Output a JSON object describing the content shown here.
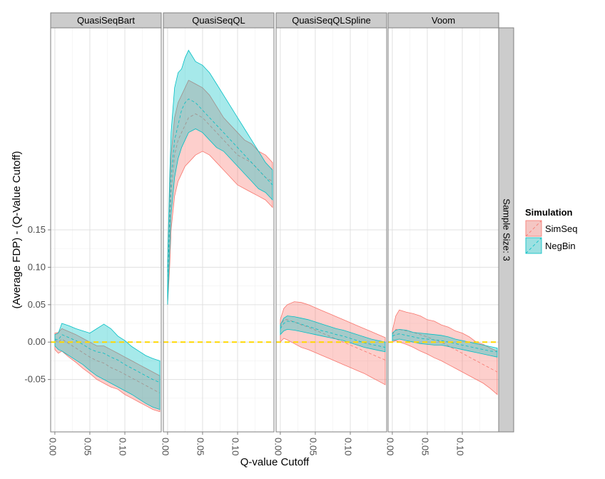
{
  "chart_data": {
    "type": "area",
    "xlabel": "Q-value Cutoff",
    "ylabel": "(Average FDP) - (Q-Value Cutoff)",
    "strip_right": "Sample Size: 3",
    "x_ticks": [
      "0.00",
      "0.05",
      "0.10"
    ],
    "y_ticks": [
      "-0.05",
      "0.00",
      "0.05",
      "0.10",
      "0.15"
    ],
    "xlim": [
      -0.006,
      0.152
    ],
    "ylim": [
      -0.12,
      0.42
    ],
    "reference_line": {
      "y": 0.0,
      "color": "#FFD700"
    },
    "legend": {
      "title": "Simulation",
      "position": "right",
      "entries": [
        {
          "name": "SimSeq",
          "fill": "#F8766D",
          "line": "#F8766D"
        },
        {
          "name": "NegBin",
          "fill": "#00BFC4",
          "line": "#00BFC4"
        }
      ]
    },
    "panels": [
      {
        "name": "QuasiSeqBart",
        "series": [
          {
            "name": "SimSeq",
            "x": [
              0.0,
              0.005,
              0.01,
              0.02,
              0.03,
              0.04,
              0.05,
              0.06,
              0.07,
              0.08,
              0.09,
              0.1,
              0.11,
              0.12,
              0.13,
              0.14,
              0.15
            ],
            "lower": [
              -0.01,
              -0.015,
              -0.012,
              -0.02,
              -0.027,
              -0.035,
              -0.042,
              -0.05,
              -0.055,
              -0.06,
              -0.063,
              -0.07,
              -0.075,
              -0.08,
              -0.085,
              -0.09,
              -0.093
            ],
            "mean": [
              0.003,
              0.0,
              0.004,
              -0.002,
              -0.008,
              -0.014,
              -0.02,
              -0.025,
              -0.028,
              -0.034,
              -0.038,
              -0.043,
              -0.048,
              -0.053,
              -0.058,
              -0.063,
              -0.068
            ],
            "upper": [
              0.012,
              0.013,
              0.018,
              0.014,
              0.01,
              0.005,
              0.0,
              -0.005,
              -0.005,
              -0.01,
              -0.015,
              -0.02,
              -0.025,
              -0.03,
              -0.035,
              -0.04,
              -0.045
            ]
          },
          {
            "name": "NegBin",
            "x": [
              0.0,
              0.005,
              0.01,
              0.02,
              0.03,
              0.04,
              0.05,
              0.06,
              0.07,
              0.08,
              0.09,
              0.1,
              0.11,
              0.12,
              0.13,
              0.14,
              0.15
            ],
            "lower": [
              -0.005,
              -0.01,
              -0.012,
              -0.018,
              -0.024,
              -0.03,
              -0.038,
              -0.045,
              -0.05,
              -0.055,
              -0.06,
              -0.065,
              -0.07,
              -0.076,
              -0.082,
              -0.087,
              -0.09
            ],
            "mean": [
              0.004,
              0.003,
              0.01,
              0.006,
              0.002,
              -0.003,
              -0.009,
              -0.013,
              -0.015,
              -0.02,
              -0.024,
              -0.03,
              -0.035,
              -0.04,
              -0.045,
              -0.05,
              -0.054
            ],
            "upper": [
              0.01,
              0.012,
              0.025,
              0.022,
              0.018,
              0.015,
              0.012,
              0.018,
              0.024,
              0.018,
              0.008,
              0.002,
              -0.006,
              -0.012,
              -0.018,
              -0.022,
              -0.025
            ]
          }
        ]
      },
      {
        "name": "QuasiSeqQL",
        "series": [
          {
            "name": "SimSeq",
            "x": [
              0.0,
              0.003,
              0.005,
              0.01,
              0.015,
              0.02,
              0.025,
              0.03,
              0.04,
              0.05,
              0.06,
              0.07,
              0.08,
              0.09,
              0.1,
              0.11,
              0.12,
              0.13,
              0.14,
              0.15
            ],
            "lower": [
              0.05,
              0.1,
              0.15,
              0.195,
              0.215,
              0.225,
              0.235,
              0.24,
              0.25,
              0.255,
              0.25,
              0.24,
              0.23,
              0.22,
              0.21,
              0.205,
              0.2,
              0.195,
              0.19,
              0.18
            ],
            "mean": [
              0.08,
              0.15,
              0.2,
              0.25,
              0.27,
              0.28,
              0.29,
              0.3,
              0.305,
              0.3,
              0.29,
              0.28,
              0.27,
              0.26,
              0.25,
              0.245,
              0.24,
              0.23,
              0.22,
              0.215
            ],
            "upper": [
              0.1,
              0.2,
              0.25,
              0.3,
              0.32,
              0.33,
              0.34,
              0.35,
              0.345,
              0.34,
              0.33,
              0.315,
              0.3,
              0.29,
              0.28,
              0.27,
              0.265,
              0.255,
              0.25,
              0.24
            ]
          },
          {
            "name": "NegBin",
            "x": [
              0.0,
              0.003,
              0.005,
              0.01,
              0.015,
              0.02,
              0.025,
              0.03,
              0.04,
              0.05,
              0.06,
              0.07,
              0.08,
              0.09,
              0.1,
              0.11,
              0.12,
              0.13,
              0.14,
              0.15
            ],
            "lower": [
              0.05,
              0.12,
              0.17,
              0.22,
              0.245,
              0.26,
              0.27,
              0.28,
              0.285,
              0.28,
              0.27,
              0.26,
              0.255,
              0.245,
              0.235,
              0.225,
              0.215,
              0.205,
              0.2,
              0.19
            ],
            "mean": [
              0.08,
              0.17,
              0.22,
              0.27,
              0.29,
              0.31,
              0.32,
              0.325,
              0.32,
              0.31,
              0.3,
              0.29,
              0.28,
              0.27,
              0.26,
              0.25,
              0.24,
              0.23,
              0.22,
              0.21
            ],
            "upper": [
              0.1,
              0.22,
              0.28,
              0.34,
              0.36,
              0.365,
              0.38,
              0.39,
              0.375,
              0.37,
              0.36,
              0.345,
              0.33,
              0.315,
              0.3,
              0.285,
              0.27,
              0.255,
              0.24,
              0.23
            ]
          }
        ]
      },
      {
        "name": "QuasiSeqQLSpline",
        "series": [
          {
            "name": "SimSeq",
            "x": [
              0.0,
              0.005,
              0.01,
              0.02,
              0.03,
              0.04,
              0.05,
              0.06,
              0.07,
              0.08,
              0.09,
              0.1,
              0.11,
              0.12,
              0.13,
              0.14,
              0.15
            ],
            "lower": [
              0.0,
              0.005,
              0.003,
              -0.002,
              -0.007,
              -0.01,
              -0.014,
              -0.018,
              -0.022,
              -0.026,
              -0.03,
              -0.034,
              -0.038,
              -0.042,
              -0.047,
              -0.052,
              -0.057
            ],
            "mean": [
              0.02,
              0.03,
              0.03,
              0.027,
              0.023,
              0.02,
              0.016,
              0.012,
              0.008,
              0.004,
              0.0,
              -0.004,
              -0.008,
              -0.012,
              -0.016,
              -0.02,
              -0.024
            ],
            "upper": [
              0.03,
              0.045,
              0.05,
              0.054,
              0.053,
              0.05,
              0.046,
              0.042,
              0.038,
              0.034,
              0.03,
              0.026,
              0.022,
              0.018,
              0.014,
              0.01,
              0.006
            ]
          },
          {
            "name": "NegBin",
            "x": [
              0.0,
              0.005,
              0.01,
              0.02,
              0.03,
              0.04,
              0.05,
              0.06,
              0.07,
              0.08,
              0.09,
              0.1,
              0.11,
              0.12,
              0.13,
              0.14,
              0.15
            ],
            "lower": [
              0.01,
              0.015,
              0.017,
              0.016,
              0.014,
              0.012,
              0.01,
              0.008,
              0.006,
              0.004,
              0.002,
              -0.001,
              -0.004,
              -0.007,
              -0.009,
              -0.011,
              -0.013
            ],
            "mean": [
              0.018,
              0.025,
              0.028,
              0.027,
              0.024,
              0.021,
              0.018,
              0.015,
              0.013,
              0.01,
              0.008,
              0.005,
              0.002,
              -0.001,
              -0.003,
              -0.005,
              -0.007
            ],
            "upper": [
              0.023,
              0.032,
              0.035,
              0.034,
              0.032,
              0.03,
              0.027,
              0.024,
              0.021,
              0.018,
              0.016,
              0.013,
              0.01,
              0.007,
              0.004,
              0.002,
              0.0
            ]
          }
        ]
      },
      {
        "name": "Voom",
        "series": [
          {
            "name": "SimSeq",
            "x": [
              0.0,
              0.005,
              0.01,
              0.02,
              0.03,
              0.04,
              0.05,
              0.06,
              0.07,
              0.08,
              0.09,
              0.1,
              0.11,
              0.12,
              0.13,
              0.14,
              0.15
            ],
            "lower": [
              0.0,
              0.002,
              0.0,
              -0.003,
              -0.007,
              -0.012,
              -0.016,
              -0.021,
              -0.025,
              -0.03,
              -0.035,
              -0.04,
              -0.045,
              -0.05,
              -0.055,
              -0.062,
              -0.07
            ],
            "mean": [
              0.01,
              0.017,
              0.017,
              0.015,
              0.013,
              0.01,
              0.007,
              0.003,
              0.0,
              -0.005,
              -0.01,
              -0.015,
              -0.02,
              -0.025,
              -0.03,
              -0.035,
              -0.04
            ],
            "upper": [
              0.015,
              0.035,
              0.043,
              0.04,
              0.038,
              0.035,
              0.03,
              0.028,
              0.023,
              0.02,
              0.015,
              0.012,
              0.007,
              0.0,
              -0.003,
              -0.008,
              -0.012
            ]
          },
          {
            "name": "NegBin",
            "x": [
              0.0,
              0.005,
              0.01,
              0.02,
              0.03,
              0.04,
              0.05,
              0.06,
              0.07,
              0.08,
              0.09,
              0.1,
              0.11,
              0.12,
              0.13,
              0.14,
              0.15
            ],
            "lower": [
              0.002,
              0.003,
              0.004,
              0.002,
              0.0,
              -0.002,
              -0.003,
              -0.004,
              -0.004,
              -0.006,
              -0.008,
              -0.01,
              -0.012,
              -0.014,
              -0.016,
              -0.018,
              -0.02
            ],
            "mean": [
              0.008,
              0.01,
              0.011,
              0.009,
              0.007,
              0.005,
              0.004,
              0.003,
              0.002,
              0.0,
              -0.002,
              -0.004,
              -0.006,
              -0.008,
              -0.01,
              -0.012,
              -0.013
            ],
            "upper": [
              0.012,
              0.016,
              0.017,
              0.016,
              0.013,
              0.012,
              0.011,
              0.01,
              0.009,
              0.007,
              0.004,
              0.002,
              0.0,
              -0.002,
              -0.004,
              -0.006,
              -0.008
            ]
          }
        ]
      }
    ]
  }
}
